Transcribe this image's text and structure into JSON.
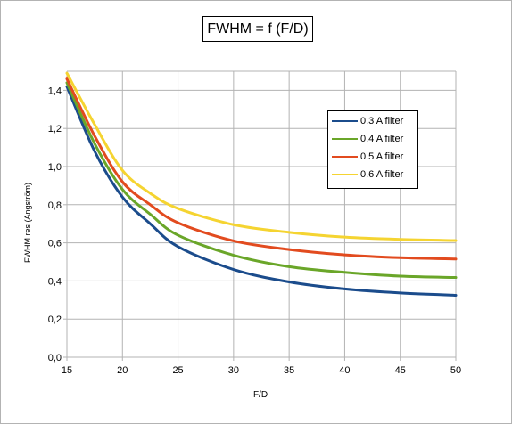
{
  "chart_data": {
    "type": "line",
    "title": "FWHM = f (F/D)",
    "xlabel": "F/D",
    "ylabel": "FWHM res (Angström)",
    "xlim": [
      15,
      50
    ],
    "ylim": [
      0,
      1.5
    ],
    "x_ticks": [
      "15",
      "20",
      "25",
      "30",
      "35",
      "40",
      "45",
      "50"
    ],
    "y_ticks": [
      "0,0",
      "0,2",
      "0,4",
      "0,6",
      "0,8",
      "1,0",
      "1,2",
      "1,4"
    ],
    "grid": true,
    "legend_position": "right",
    "x": [
      15,
      17.5,
      20,
      22.5,
      25,
      30,
      35,
      40,
      45,
      50
    ],
    "series": [
      {
        "name": "0.3 A filter",
        "color": "#1b4c8c",
        "values": [
          1.42,
          1.08,
          0.84,
          0.7,
          0.58,
          0.46,
          0.395,
          0.358,
          0.337,
          0.325
        ]
      },
      {
        "name": "0.4 A filter",
        "color": "#6aa629",
        "values": [
          1.44,
          1.12,
          0.88,
          0.75,
          0.64,
          0.535,
          0.475,
          0.445,
          0.425,
          0.418
        ]
      },
      {
        "name": "0.5 A filter",
        "color": "#e24b1f",
        "values": [
          1.46,
          1.16,
          0.92,
          0.8,
          0.705,
          0.61,
          0.565,
          0.537,
          0.522,
          0.515
        ]
      },
      {
        "name": "0.6 A filter",
        "color": "#f5d431",
        "values": [
          1.49,
          1.22,
          0.98,
          0.86,
          0.78,
          0.695,
          0.655,
          0.63,
          0.618,
          0.612
        ]
      }
    ]
  }
}
